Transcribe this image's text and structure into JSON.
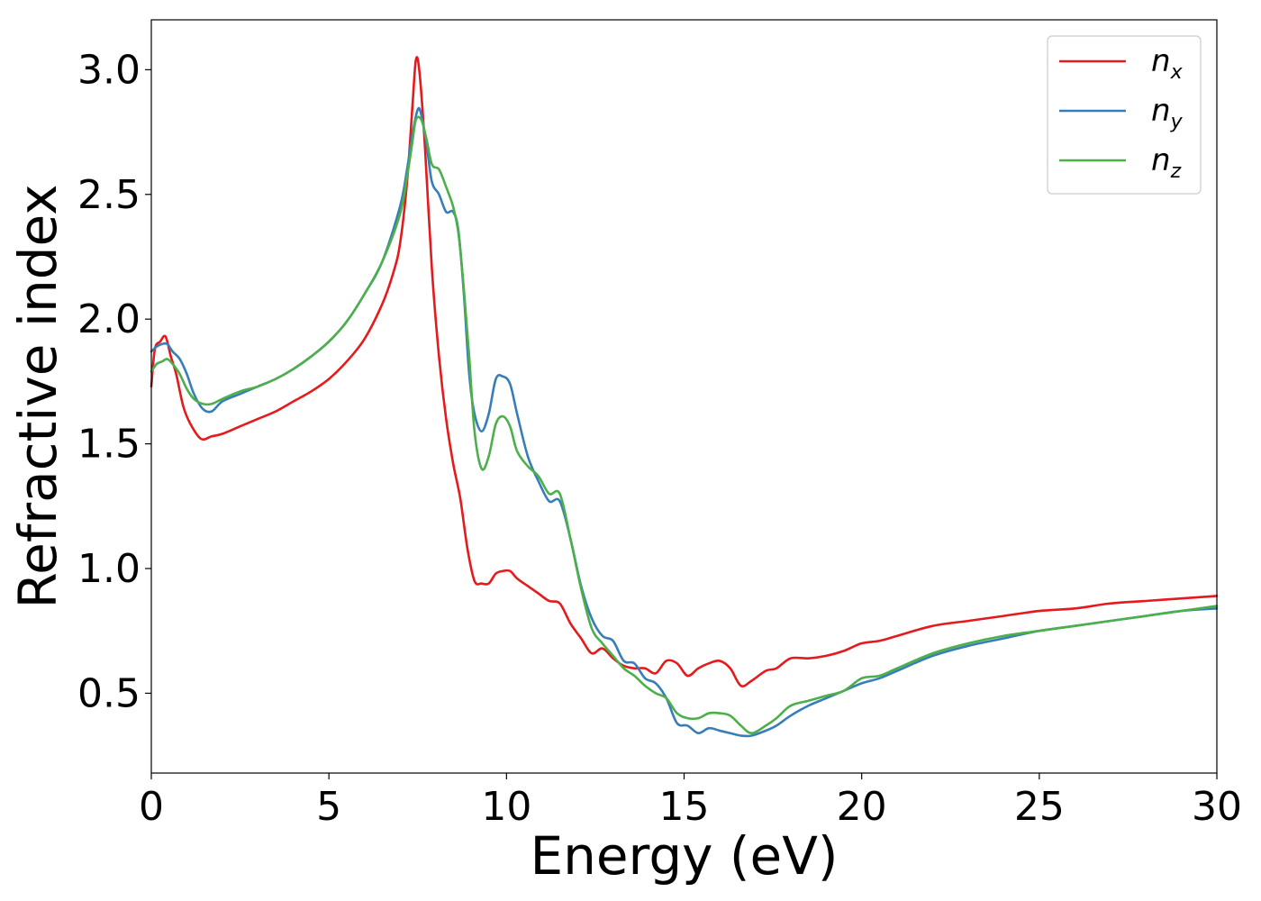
{
  "chart_data": {
    "type": "line",
    "xlabel": "Energy (eV)",
    "ylabel": "Refractive index",
    "xlim": [
      0,
      30
    ],
    "ylim": [
      0.18,
      3.2
    ],
    "xticks": [
      0,
      5,
      10,
      15,
      20,
      25,
      30
    ],
    "yticks": [
      0.5,
      1.0,
      1.5,
      2.0,
      2.5,
      3.0
    ],
    "xtick_labels": [
      "0",
      "5",
      "10",
      "15",
      "20",
      "25",
      "30"
    ],
    "ytick_labels": [
      "0.5",
      "1.0",
      "1.5",
      "2.0",
      "2.5",
      "3.0"
    ],
    "grid": false,
    "legend_position": "top-right",
    "series": [
      {
        "name": "n_x",
        "label_main": "n",
        "label_sub": "x",
        "color": "#e41a1c",
        "x": [
          0,
          0.1,
          0.25,
          0.4,
          0.55,
          0.7,
          0.9,
          1.1,
          1.4,
          1.7,
          2.0,
          2.5,
          3.0,
          3.5,
          4.0,
          4.5,
          5.0,
          5.5,
          6.0,
          6.5,
          6.8,
          7.0,
          7.2,
          7.35,
          7.45,
          7.55,
          7.7,
          7.9,
          8.1,
          8.3,
          8.5,
          8.7,
          8.9,
          9.1,
          9.3,
          9.5,
          9.7,
          9.9,
          10.1,
          10.3,
          10.6,
          10.9,
          11.2,
          11.5,
          11.8,
          12.1,
          12.4,
          12.7,
          13.0,
          13.3,
          13.6,
          13.9,
          14.2,
          14.5,
          14.8,
          15.1,
          15.4,
          15.7,
          16.0,
          16.3,
          16.6,
          16.9,
          17.3,
          17.6,
          18.0,
          18.5,
          19.0,
          19.5,
          20.0,
          20.5,
          21.0,
          22.0,
          23.0,
          24.0,
          25.0,
          26.0,
          27.0,
          28.0,
          29.0,
          30.0
        ],
        "y": [
          1.73,
          1.88,
          1.91,
          1.93,
          1.85,
          1.78,
          1.65,
          1.58,
          1.52,
          1.53,
          1.54,
          1.57,
          1.6,
          1.63,
          1.67,
          1.71,
          1.76,
          1.83,
          1.92,
          2.06,
          2.18,
          2.3,
          2.55,
          2.85,
          3.04,
          2.99,
          2.7,
          2.2,
          1.85,
          1.6,
          1.42,
          1.28,
          1.08,
          0.95,
          0.94,
          0.94,
          0.98,
          0.99,
          0.99,
          0.96,
          0.93,
          0.9,
          0.87,
          0.86,
          0.78,
          0.72,
          0.66,
          0.68,
          0.64,
          0.61,
          0.6,
          0.6,
          0.58,
          0.63,
          0.62,
          0.57,
          0.6,
          0.62,
          0.63,
          0.6,
          0.53,
          0.55,
          0.59,
          0.6,
          0.64,
          0.64,
          0.65,
          0.67,
          0.7,
          0.71,
          0.73,
          0.77,
          0.79,
          0.81,
          0.83,
          0.84,
          0.86,
          0.87,
          0.88,
          0.89
        ]
      },
      {
        "name": "n_y",
        "label_main": "n",
        "label_sub": "y",
        "color": "#377eb8",
        "x": [
          0,
          0.15,
          0.3,
          0.45,
          0.6,
          0.8,
          1.0,
          1.2,
          1.45,
          1.7,
          2.0,
          2.5,
          3.0,
          3.5,
          4.0,
          4.5,
          5.0,
          5.5,
          6.0,
          6.5,
          7.0,
          7.2,
          7.35,
          7.5,
          7.6,
          7.75,
          7.9,
          8.1,
          8.3,
          8.5,
          8.65,
          8.8,
          8.95,
          9.1,
          9.3,
          9.5,
          9.7,
          9.9,
          10.1,
          10.3,
          10.6,
          10.9,
          11.2,
          11.5,
          11.8,
          12.1,
          12.4,
          12.7,
          13.0,
          13.3,
          13.6,
          13.9,
          14.2,
          14.5,
          14.8,
          15.1,
          15.4,
          15.7,
          16.0,
          16.3,
          16.6,
          16.9,
          17.3,
          17.6,
          18.0,
          18.5,
          19.0,
          19.5,
          20.0,
          20.5,
          21.0,
          22.0,
          23.0,
          24.0,
          25.0,
          26.0,
          27.0,
          28.0,
          29.0,
          30.0
        ],
        "y": [
          1.87,
          1.89,
          1.9,
          1.9,
          1.87,
          1.84,
          1.78,
          1.7,
          1.64,
          1.63,
          1.67,
          1.7,
          1.73,
          1.76,
          1.8,
          1.85,
          1.91,
          1.99,
          2.1,
          2.23,
          2.45,
          2.6,
          2.74,
          2.84,
          2.82,
          2.7,
          2.55,
          2.5,
          2.43,
          2.43,
          2.35,
          2.1,
          1.78,
          1.62,
          1.55,
          1.62,
          1.76,
          1.77,
          1.74,
          1.62,
          1.45,
          1.35,
          1.27,
          1.27,
          1.12,
          0.93,
          0.8,
          0.73,
          0.71,
          0.63,
          0.62,
          0.56,
          0.54,
          0.48,
          0.38,
          0.37,
          0.34,
          0.36,
          0.35,
          0.34,
          0.33,
          0.33,
          0.35,
          0.37,
          0.41,
          0.45,
          0.48,
          0.51,
          0.54,
          0.56,
          0.59,
          0.65,
          0.69,
          0.72,
          0.75,
          0.77,
          0.79,
          0.81,
          0.83,
          0.84
        ]
      },
      {
        "name": "n_z",
        "label_main": "n",
        "label_sub": "z",
        "color": "#4daf4a",
        "x": [
          0,
          0.15,
          0.3,
          0.45,
          0.6,
          0.8,
          1.0,
          1.2,
          1.45,
          1.7,
          2.0,
          2.5,
          3.0,
          3.5,
          4.0,
          4.5,
          5.0,
          5.5,
          6.0,
          6.5,
          7.0,
          7.2,
          7.35,
          7.45,
          7.6,
          7.75,
          7.9,
          8.1,
          8.3,
          8.5,
          8.65,
          8.8,
          8.95,
          9.1,
          9.3,
          9.5,
          9.7,
          9.9,
          10.1,
          10.3,
          10.6,
          10.9,
          11.2,
          11.5,
          11.8,
          12.1,
          12.4,
          12.7,
          13.0,
          13.3,
          13.6,
          13.9,
          14.2,
          14.5,
          14.8,
          15.1,
          15.4,
          15.7,
          16.0,
          16.3,
          16.6,
          16.9,
          17.3,
          17.6,
          18.0,
          18.5,
          19.0,
          19.5,
          20.0,
          20.5,
          21.0,
          22.0,
          23.0,
          24.0,
          25.0,
          26.0,
          27.0,
          28.0,
          29.0,
          30.0
        ],
        "y": [
          1.79,
          1.82,
          1.83,
          1.84,
          1.82,
          1.78,
          1.72,
          1.68,
          1.66,
          1.66,
          1.68,
          1.71,
          1.73,
          1.76,
          1.8,
          1.85,
          1.91,
          1.99,
          2.1,
          2.23,
          2.42,
          2.57,
          2.71,
          2.8,
          2.8,
          2.72,
          2.62,
          2.6,
          2.53,
          2.45,
          2.34,
          2.12,
          1.85,
          1.55,
          1.4,
          1.45,
          1.58,
          1.61,
          1.57,
          1.47,
          1.41,
          1.37,
          1.3,
          1.3,
          1.12,
          0.92,
          0.76,
          0.7,
          0.65,
          0.6,
          0.57,
          0.53,
          0.5,
          0.48,
          0.42,
          0.4,
          0.4,
          0.42,
          0.42,
          0.41,
          0.37,
          0.34,
          0.37,
          0.4,
          0.45,
          0.47,
          0.49,
          0.51,
          0.56,
          0.57,
          0.6,
          0.66,
          0.7,
          0.73,
          0.75,
          0.77,
          0.79,
          0.81,
          0.83,
          0.85
        ]
      }
    ]
  }
}
